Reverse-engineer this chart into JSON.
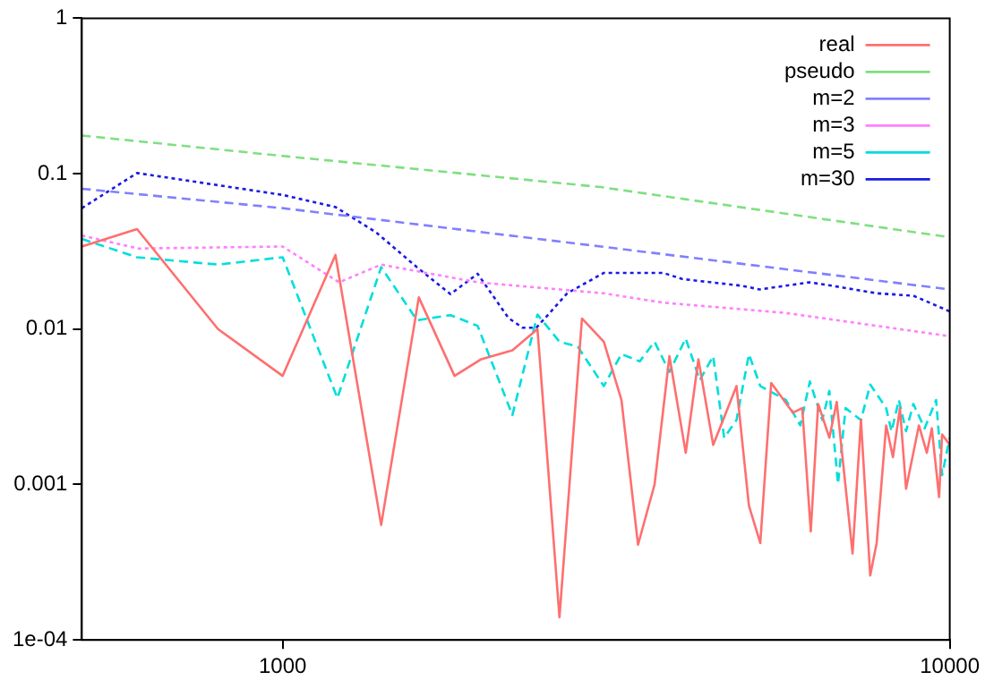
{
  "chart_data": {
    "type": "line",
    "log": "xy",
    "xlim": [
      500,
      10000
    ],
    "ylim": [
      0.0001,
      1
    ],
    "xticks": [
      1000,
      10000
    ],
    "yticks": [
      {
        "value": 0.0001,
        "label": "1e-04"
      },
      0.001,
      0.01,
      0.1,
      1
    ],
    "grid": false,
    "legend": "top right",
    "marker": "none",
    "series": [
      {
        "name": "real",
        "color": "#ff6f6f",
        "line_style": "solid",
        "x": [
          500,
          605,
          800,
          1000,
          1200,
          1405,
          1600,
          1810,
          1985,
          2210,
          2410,
          2600,
          2810,
          3030,
          3220,
          3410,
          3610,
          3800,
          4020,
          4200,
          4420,
          4790,
          5000,
          5200,
          5400,
          5820,
          6010,
          6190,
          6350,
          6600,
          6770,
          7150,
          7360,
          7600,
          7770,
          8030,
          8220,
          8420,
          8600,
          8990,
          9240,
          9400,
          9640,
          9740,
          10000
        ],
        "values": [
          0.034,
          0.044,
          0.01,
          0.005,
          0.03,
          0.00055,
          0.016,
          0.005,
          0.0064,
          0.0073,
          0.01,
          0.00014,
          0.0117,
          0.0083,
          0.0035,
          0.00041,
          0.001,
          0.0067,
          0.0016,
          0.0064,
          0.0018,
          0.0043,
          0.00073,
          0.00042,
          0.0045,
          0.0029,
          0.0031,
          0.0005,
          0.0033,
          0.002,
          0.0034,
          0.00036,
          0.0026,
          0.00026,
          0.00042,
          0.0024,
          0.0015,
          0.0031,
          0.00094,
          0.0024,
          0.0016,
          0.0023,
          0.00083,
          0.0021,
          0.0018
        ]
      },
      {
        "name": "pseudo",
        "color": "#7fdf7f",
        "line_style": "dashed",
        "x": [
          500,
          1000,
          3000,
          10000
        ],
        "values": [
          0.176,
          0.13,
          0.082,
          0.039
        ]
      },
      {
        "name": "m=2",
        "color": "#8080ff",
        "line_style": "dashed",
        "x": [
          500,
          1000,
          3000,
          10000
        ],
        "values": [
          0.08,
          0.06,
          0.034,
          0.018
        ]
      },
      {
        "name": "m=3",
        "color": "#ff80ff",
        "line_style": "dotted",
        "x": [
          500,
          608,
          1000,
          1215,
          1405,
          1960,
          3025,
          3720,
          5680,
          10000
        ],
        "values": [
          0.04,
          0.033,
          0.034,
          0.02,
          0.026,
          0.02,
          0.017,
          0.0148,
          0.0127,
          0.009
        ]
      },
      {
        "name": "m=5",
        "color": "#00dddd",
        "line_style": "dashed",
        "x": [
          500,
          605,
          800,
          1000,
          1208,
          1405,
          1590,
          1785,
          1960,
          2210,
          2410,
          2600,
          2770,
          3030,
          3220,
          3430,
          3610,
          3800,
          4020,
          4220,
          4420,
          4590,
          4790,
          5000,
          5200,
          5680,
          5970,
          6170,
          6440,
          6600,
          6800,
          6980,
          7360,
          7600,
          8030,
          8180,
          8390,
          8600,
          8820,
          9170,
          9540,
          9740,
          10000
        ],
        "values": [
          0.038,
          0.029,
          0.026,
          0.029,
          0.0036,
          0.025,
          0.0114,
          0.0123,
          0.0105,
          0.0028,
          0.0124,
          0.0083,
          0.0077,
          0.0043,
          0.0069,
          0.0062,
          0.0083,
          0.0053,
          0.0087,
          0.0047,
          0.0067,
          0.002,
          0.0026,
          0.0069,
          0.0043,
          0.0035,
          0.0024,
          0.0046,
          0.0026,
          0.004,
          0.00101,
          0.0031,
          0.0026,
          0.0044,
          0.0031,
          0.0022,
          0.0035,
          0.0022,
          0.0033,
          0.0023,
          0.0035,
          0.00115,
          0.002
        ]
      },
      {
        "name": "m=30",
        "color": "#1a1ae6",
        "line_style": "dotted",
        "x": [
          500,
          605,
          1000,
          1200,
          1380,
          1590,
          1785,
          1960,
          2180,
          2290,
          2400,
          2475,
          2670,
          3030,
          3720,
          3970,
          4880,
          5190,
          6160,
          6670,
          7770,
          8820,
          10000
        ],
        "values": [
          0.06,
          0.101,
          0.073,
          0.061,
          0.042,
          0.025,
          0.0168,
          0.0227,
          0.0118,
          0.0102,
          0.0102,
          0.0118,
          0.017,
          0.023,
          0.023,
          0.021,
          0.019,
          0.018,
          0.02,
          0.019,
          0.017,
          0.0164,
          0.013
        ]
      }
    ]
  }
}
